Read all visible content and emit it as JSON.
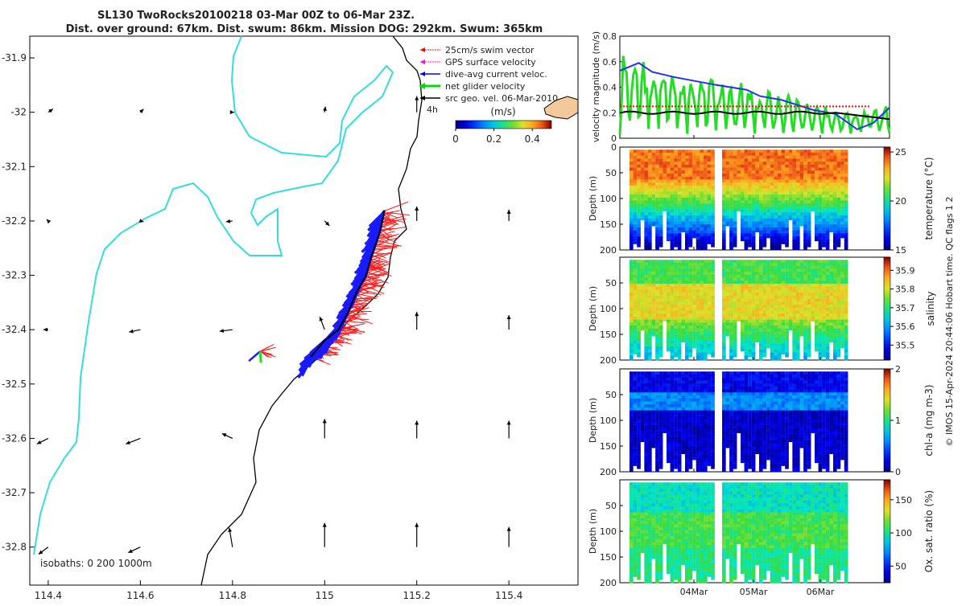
{
  "chart_data": {
    "type": "map",
    "title_lines": [
      "SL130 TwoRocks20100218 03-Mar 00Z to 06-Mar 23Z.",
      "Dist. over ground: 67km. Dist. swum: 86km. Mission DOG: 292km. Swum: 365km"
    ],
    "map": {
      "lon_ticks": [
        114.4,
        114.6,
        114.8,
        115,
        115.2,
        115.4
      ],
      "lon_tick_labels": [
        "114.4",
        "114.6",
        "114.8",
        "115",
        "115.2",
        "115.4"
      ],
      "lat_ticks": [
        -31.9,
        -32,
        -32.1,
        -32.2,
        -32.3,
        -32.4,
        -32.5,
        -32.6,
        -32.7,
        -32.8
      ],
      "lat_tick_labels": [
        "-31.9",
        "-32",
        "-32.1",
        "-32.2",
        "-32.3",
        "-32.4",
        "-32.5",
        "-32.6",
        "-32.7",
        "-32.8"
      ],
      "lon_range": [
        114.36,
        115.55
      ],
      "lat_range": [
        -32.87,
        -31.86
      ],
      "legend": [
        {
          "label": "25cm/s swim vector",
          "color": "#ff0000"
        },
        {
          "label": "GPS surface velocity",
          "color": "#ff00ff"
        },
        {
          "label": "dive-avg current veloc.",
          "color": "#0000ff"
        },
        {
          "label": "net glider velocity",
          "color": "#00dd00"
        },
        {
          "label": "src geo. vel. 06-Mar-2010",
          "color": "#000000"
        }
      ],
      "time_step_label": "4h",
      "colorbar": {
        "label": "(m/s)",
        "ticks": [
          0,
          0.2,
          0.4
        ],
        "tick_labels": [
          "0",
          "0.2",
          "0.4"
        ],
        "range": [
          0,
          0.5
        ]
      },
      "isobaths_label": "isobaths: 0   200  1000m",
      "track": [
        [
          114.97,
          -32.45
        ],
        [
          115.0,
          -32.42
        ],
        [
          115.03,
          -32.4
        ],
        [
          115.05,
          -32.37
        ],
        [
          115.07,
          -32.33
        ],
        [
          115.09,
          -32.3
        ],
        [
          115.1,
          -32.27
        ],
        [
          115.12,
          -32.22
        ],
        [
          115.13,
          -32.18
        ]
      ]
    },
    "panels": [
      {
        "ylabel": "velocity magnitude (m/s)",
        "yticks": [
          "0.8",
          "0.6",
          "0.4",
          "0.2",
          "0"
        ],
        "ylim": [
          0,
          0.8
        ],
        "series": [
          {
            "name": "net glider velocity",
            "color": "#22dd22"
          },
          {
            "name": "dive-avg current veloc.",
            "color": "#2233ee"
          },
          {
            "name": "25cm/s swim vector",
            "color": "#ee1111"
          },
          {
            "name": "src geo. vel.",
            "color": "#000000"
          }
        ]
      },
      {
        "ylabel": "temperature (°C)",
        "depth_label": "Depth (m)",
        "depth_ticks": [
          "0",
          "50",
          "100",
          "150",
          "200"
        ],
        "cbar_ticks": [
          "25",
          "20",
          "15"
        ],
        "cbar_range": [
          15,
          25.5
        ]
      },
      {
        "ylabel": "salinity",
        "depth_label": "Depth (m)",
        "depth_ticks": [
          "50",
          "100",
          "150",
          "200"
        ],
        "cbar_ticks": [
          "35.9",
          "35.8",
          "35.7",
          "35.6",
          "35.5"
        ],
        "cbar_range": [
          35.42,
          35.97
        ]
      },
      {
        "ylabel": "chl-a (mg m-3)",
        "depth_label": "Depth (m)",
        "depth_ticks": [
          "50",
          "100",
          "150",
          "200"
        ],
        "cbar_ticks": [
          "2",
          "1",
          "0"
        ],
        "cbar_range": [
          0,
          2
        ]
      },
      {
        "ylabel": "Ox. sat. ratio (%)",
        "depth_label": "Depth (m)",
        "depth_ticks": [
          "50",
          "100",
          "150",
          "200"
        ],
        "cbar_ticks": [
          "150",
          "100",
          "50"
        ],
        "cbar_range": [
          25,
          180
        ]
      }
    ],
    "date_ticks": [
      "04Mar",
      "05Mar",
      "06Mar"
    ],
    "side_note": "© IMOS 15-Apr-2024 20:44:06 Hobart time. QC flags 1  2"
  }
}
